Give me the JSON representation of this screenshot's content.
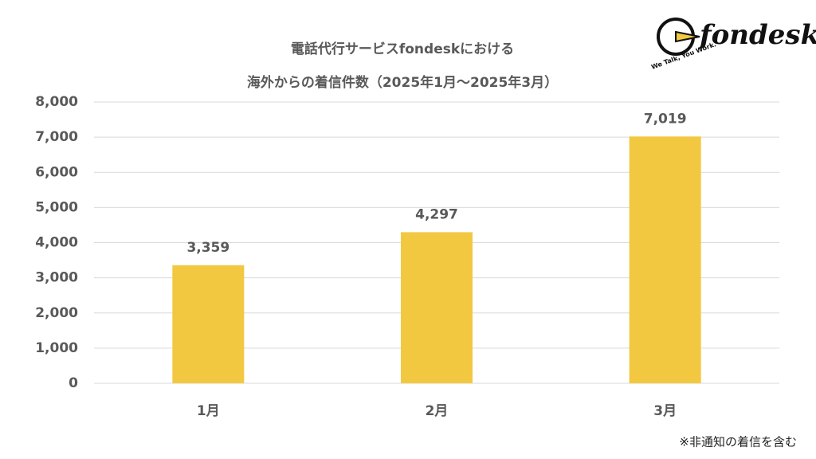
{
  "chart_data": {
    "type": "bar",
    "title": [
      "電話代行サービスfondeskにおける",
      "海外からの着信件数（2025年1月〜2025年3月）"
    ],
    "logo": {
      "name": "fondesk",
      "tagline": "We Talk, You Work."
    },
    "note": "※非通知の着信を含む",
    "categories": [
      "1月",
      "2月",
      "3月"
    ],
    "values": [
      3359,
      4297,
      7019
    ],
    "value_labels": [
      "3,359",
      "4,297",
      "7,019"
    ],
    "color": "#f2c840",
    "ylim": [
      0,
      8000
    ],
    "yticks": [
      0,
      {
        "value": 1000,
        "label": "1,000"
      },
      {
        "value": 2000,
        "label": "2,000"
      },
      {
        "value": 3000,
        "label": "3,000"
      },
      {
        "value": 4000,
        "label": "4,000"
      },
      {
        "value": 5000,
        "label": "5,000"
      },
      {
        "value": 6000,
        "label": "6,000"
      },
      {
        "value": 7000,
        "label": "7,000"
      },
      {
        "value": 8000,
        "label": "8,000"
      }
    ],
    "grid": true
  }
}
